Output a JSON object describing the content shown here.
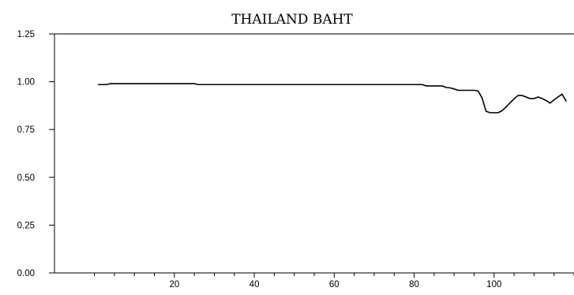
{
  "chart_data": {
    "type": "line",
    "title": "THAILAND BAHT",
    "xlabel": "",
    "ylabel": "",
    "xlim": [
      -10,
      120
    ],
    "ylim": [
      0,
      1.25
    ],
    "xticks": [
      20,
      40,
      60,
      80,
      100
    ],
    "xtick_labels": [
      "20",
      "40",
      "60",
      "80",
      "100"
    ],
    "yticks": [
      0,
      0.25,
      0.5,
      0.75,
      1.0,
      1.25
    ],
    "ytick_labels": [
      "0.00",
      "0.25",
      "0.50",
      "0.75",
      "1.00",
      "1.25"
    ],
    "grid": false,
    "legend": "none",
    "colors": {
      "line": "#000000",
      "axis": "#000000",
      "background": "#ffffff"
    },
    "series": [
      {
        "x": [
          1,
          2,
          3,
          4,
          5,
          10,
          15,
          20,
          24,
          25,
          26,
          30,
          40,
          50,
          60,
          70,
          80,
          82,
          83,
          84,
          85,
          86,
          87,
          88,
          89,
          90,
          91,
          92,
          93,
          94,
          95,
          96,
          97,
          98,
          99,
          100,
          101,
          102,
          103,
          104,
          105,
          106,
          107,
          108,
          109,
          110,
          111,
          112,
          113,
          114,
          115,
          116,
          117,
          118
        ],
        "y": [
          0.985,
          0.985,
          0.985,
          0.99,
          0.99,
          0.99,
          0.99,
          0.99,
          0.99,
          0.99,
          0.985,
          0.985,
          0.985,
          0.985,
          0.985,
          0.985,
          0.985,
          0.985,
          0.978,
          0.978,
          0.978,
          0.978,
          0.978,
          0.97,
          0.968,
          0.962,
          0.955,
          0.955,
          0.955,
          0.955,
          0.955,
          0.952,
          0.915,
          0.845,
          0.838,
          0.838,
          0.838,
          0.848,
          0.868,
          0.89,
          0.91,
          0.928,
          0.928,
          0.92,
          0.912,
          0.912,
          0.92,
          0.912,
          0.902,
          0.888,
          0.905,
          0.92,
          0.935,
          0.9
        ]
      }
    ]
  }
}
